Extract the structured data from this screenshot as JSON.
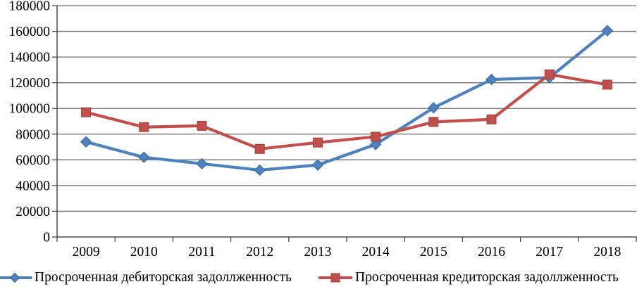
{
  "chart_data": {
    "type": "line",
    "title": "",
    "xlabel": "",
    "ylabel": "",
    "categories": [
      "2009",
      "2010",
      "2011",
      "2012",
      "2013",
      "2014",
      "2015",
      "2016",
      "2017",
      "2018"
    ],
    "series": [
      {
        "name": "Просроченная дебиторская задоллженность",
        "marker": "diamond",
        "color": "#4F81BD",
        "border_color": "#3A689B",
        "values": [
          74000,
          62000,
          57000,
          52000,
          56000,
          72000,
          100500,
          122500,
          124000,
          160500
        ]
      },
      {
        "name": "Просроченная кредиторская задоллженность",
        "marker": "square",
        "color": "#C0504D",
        "border_color": "#9E3F3D",
        "values": [
          97000,
          85500,
          86500,
          68500,
          73500,
          78000,
          89500,
          91500,
          126500,
          118500
        ]
      }
    ],
    "y_ticks": [
      0,
      20000,
      40000,
      60000,
      80000,
      100000,
      120000,
      140000,
      160000,
      180000
    ],
    "ylim": [
      0,
      180000
    ],
    "grid": true,
    "legend_position": "bottom",
    "gridline_color": "#6E6E6E",
    "axis_color": "#4A4A4A",
    "text_color": "#000000"
  }
}
